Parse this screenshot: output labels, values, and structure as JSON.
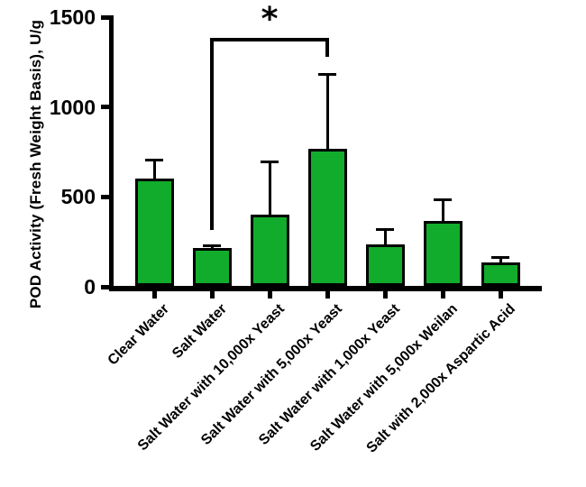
{
  "chart_data": {
    "type": "bar",
    "title": "",
    "xlabel": "",
    "ylabel": "POD Activity (Fresh Weight Basis), U/g",
    "ylim": [
      0,
      1500
    ],
    "yticks": [
      0,
      500,
      1000,
      1500
    ],
    "grid": false,
    "legend": "none",
    "categories": [
      "Clear Water",
      "Salt Water",
      "Salt Water with 10,000x Yeast",
      "Salt Water with 5,000x Yeast",
      "Salt Water with 1,000x Yeast",
      "Salt Water with 5,000x Weilan",
      "Salt with 2,000x Aspartic Acid"
    ],
    "values": [
      600,
      215,
      400,
      770,
      235,
      365,
      135
    ],
    "errors_plus": [
      110,
      20,
      300,
      420,
      90,
      125,
      35
    ],
    "units": "U/g",
    "bar_color": "#11AC2B",
    "bar_border_color": "#000000",
    "axis_color": "#000000",
    "significance": {
      "from_index": 1,
      "to_index": 3,
      "from": "Salt Water",
      "to": "Salt Water with 5,000x Yeast",
      "label": "*"
    }
  }
}
